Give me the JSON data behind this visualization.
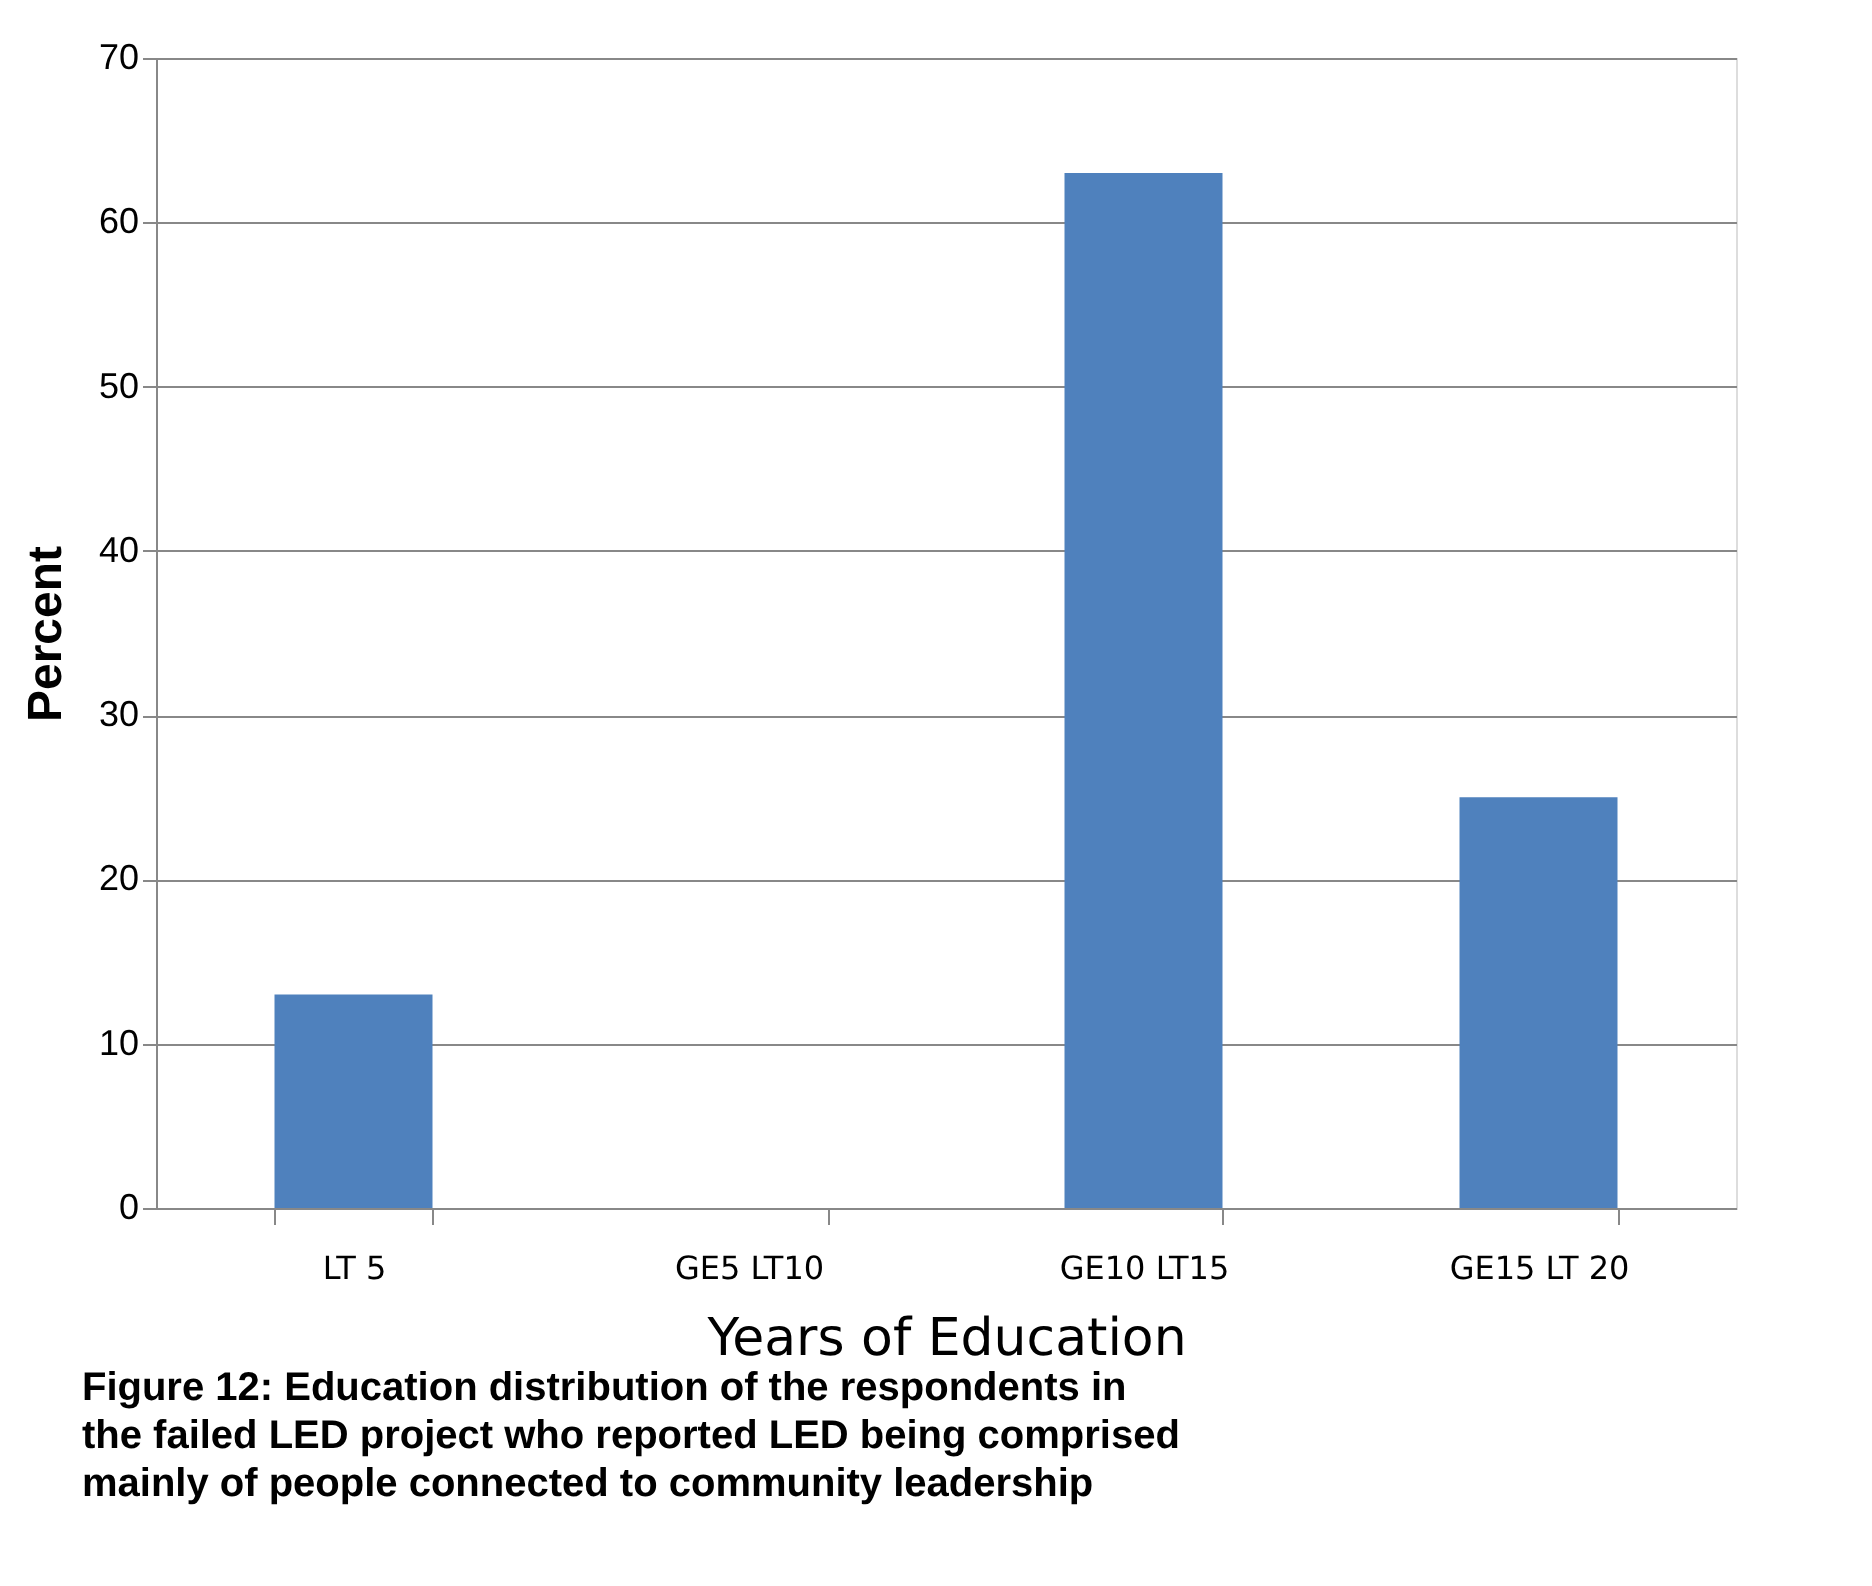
{
  "chart_data": {
    "type": "bar",
    "categories": [
      "LT 5",
      "GE5 LT10",
      "GE10 LT15",
      "GE15 LT 20"
    ],
    "values": [
      13,
      0,
      63,
      25
    ],
    "color": "#4f81bd",
    "xlabel": "Years of Education",
    "ylabel": "Percent",
    "ylim": [
      0,
      70
    ],
    "yticks": [
      0,
      10,
      20,
      30,
      40,
      50,
      60,
      70
    ],
    "grid": "y",
    "annotations": [
      "Figure 12: Education distribution of the respondents in the failed LED project who reported LED being comprised mainly of people connected to community leadership"
    ]
  }
}
